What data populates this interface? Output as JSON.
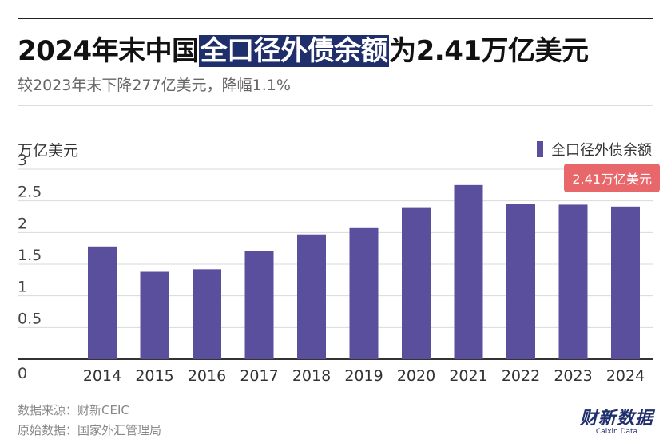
{
  "header": {
    "title_pre": "2024年末中国",
    "title_highlight": "全口径外债余额",
    "title_post": "为2.41万亿美元",
    "subtitle": "较2023年末下降277亿美元，降幅1.1%"
  },
  "colors": {
    "bar": "#5a4f9c",
    "accent": "#e8676a",
    "highlight": "#1f2f6b"
  },
  "chart_data": {
    "type": "bar",
    "categories": [
      "2014",
      "2015",
      "2016",
      "2017",
      "2018",
      "2019",
      "2020",
      "2021",
      "2022",
      "2023",
      "2024"
    ],
    "series": [
      {
        "name": "全口径外债余额",
        "values": [
          1.78,
          1.38,
          1.42,
          1.71,
          1.97,
          2.07,
          2.4,
          2.75,
          2.45,
          2.44,
          2.41
        ]
      }
    ],
    "ylabel": "万亿美元",
    "yticks": [
      0,
      0.5,
      1,
      1.5,
      2,
      2.5,
      3
    ],
    "ylim": [
      0,
      3
    ],
    "grid": true,
    "legend": "top-right",
    "annotation": "2.41万亿美元"
  },
  "footer": {
    "source": "数据来源：财新CEIC",
    "original": "原始数据：国家外汇管理局"
  },
  "logo": {
    "cn": "财新数据",
    "en": "Caixin Data"
  }
}
